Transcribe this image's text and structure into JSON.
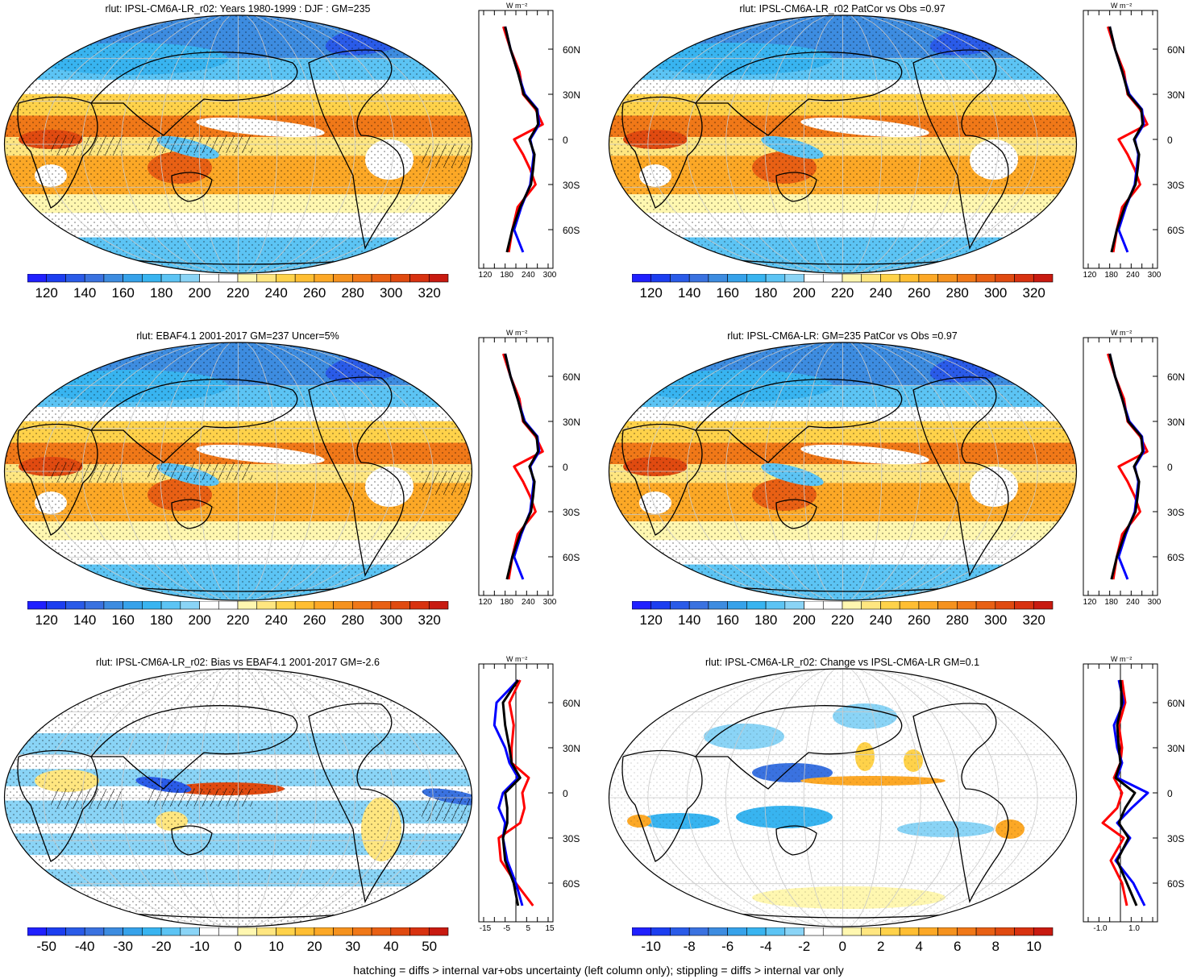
{
  "footer": "hatching = diffs > internal var+obs uncertainty (left column only); stippling = diffs > internal var only",
  "profile_unit": "W m⁻²",
  "lat_labels": [
    "60N",
    "30N",
    "0",
    "30S",
    "60S"
  ],
  "colors": {
    "blue_dark": "#1a1aff",
    "blue": "#35a8ef",
    "white": "#ffffff",
    "yellow": "#ffe680",
    "orange": "#f08a1a",
    "red": "#d81818",
    "line_red": "#ff0000",
    "line_blue": "#0000ff",
    "line_black": "#000000"
  },
  "panels": [
    {
      "id": "p1",
      "title": "rlut: IPSL-CM6A-LR_r02: Years 1980-1999 : DJF : GM=235",
      "field": "abs",
      "hatch": true,
      "colorbar_labels": [
        "120",
        "140",
        "160",
        "180",
        "200",
        "220",
        "240",
        "260",
        "280",
        "300",
        "320"
      ],
      "profile_ticks": [
        "120",
        "180",
        "240",
        "300"
      ]
    },
    {
      "id": "p2",
      "title": "rlut: IPSL-CM6A-LR_r02 PatCor vs Obs =0.97",
      "field": "abs",
      "hatch": false,
      "colorbar_labels": [
        "120",
        "140",
        "160",
        "180",
        "200",
        "220",
        "240",
        "260",
        "280",
        "300",
        "320"
      ],
      "profile_ticks": [
        "120",
        "180",
        "240",
        "300"
      ]
    },
    {
      "id": "p3",
      "title": "rlut: EBAF4.1 2001-2017 GM=237 Uncer=5%",
      "field": "abs",
      "hatch": true,
      "colorbar_labels": [
        "120",
        "140",
        "160",
        "180",
        "200",
        "220",
        "240",
        "260",
        "280",
        "300",
        "320"
      ],
      "profile_ticks": [
        "120",
        "180",
        "240",
        "300"
      ]
    },
    {
      "id": "p4",
      "title": "rlut: IPSL-CM6A-LR: GM=235 PatCor vs Obs =0.97",
      "field": "abs",
      "hatch": false,
      "colorbar_labels": [
        "120",
        "140",
        "160",
        "180",
        "200",
        "220",
        "240",
        "260",
        "280",
        "300",
        "320"
      ],
      "profile_ticks": [
        "120",
        "180",
        "240",
        "300"
      ]
    },
    {
      "id": "p5",
      "title": "rlut: IPSL-CM6A-LR_r02: Bias vs EBAF4.1 2001-2017 GM=-2.6",
      "field": "bias",
      "hatch": true,
      "colorbar_labels": [
        "-50",
        "-40",
        "-30",
        "-20",
        "-10",
        "0",
        "10",
        "20",
        "30",
        "40",
        "50"
      ],
      "profile_ticks": [
        "-15",
        "-5",
        "5",
        "15"
      ]
    },
    {
      "id": "p6",
      "title": "rlut: IPSL-CM6A-LR_r02: Change vs IPSL-CM6A-LR GM=0.1",
      "field": "change",
      "hatch": false,
      "colorbar_labels": [
        "-10",
        "-8",
        "-6",
        "-4",
        "-2",
        "0",
        "2",
        "4",
        "6",
        "8",
        "10"
      ],
      "profile_ticks": [
        "-1.0",
        "1.0"
      ]
    }
  ],
  "chart_data": {
    "type": "heatmap",
    "variable": "rlut",
    "zonal_profile_lat": [
      -75,
      -60,
      -45,
      -30,
      -20,
      -10,
      0,
      10,
      20,
      30,
      45,
      60,
      75
    ],
    "zonal_profiles": {
      "abs": {
        "red": [
          190,
          200,
          215,
          265,
          250,
          230,
          205,
          285,
          265,
          230,
          220,
          195,
          175
        ],
        "blue": [
          230,
          205,
          225,
          250,
          255,
          260,
          250,
          275,
          270,
          235,
          215,
          195,
          180
        ],
        "black": [
          185,
          200,
          222,
          252,
          258,
          262,
          248,
          272,
          268,
          232,
          215,
          195,
          180
        ]
      },
      "bias": {
        "red": [
          8,
          0,
          -7,
          -8,
          2,
          4,
          3,
          6,
          -2,
          -2,
          -1,
          -3,
          2
        ],
        "blue": [
          3,
          0,
          -4,
          -6,
          -5,
          -8,
          -6,
          1,
          -3,
          -5,
          -10,
          -9,
          1
        ],
        "black": [
          1,
          -1,
          -5,
          -6,
          -4,
          -4,
          -5,
          2,
          -2,
          -3,
          -5,
          -6,
          1
        ]
      },
      "change": {
        "red": [
          0.4,
          0.1,
          -0.6,
          0.2,
          -1.1,
          -0.2,
          0.1,
          -0.4,
          0.0,
          0.1,
          -0.1,
          0.3,
          0.1
        ],
        "blue": [
          1.5,
          0.8,
          -0.3,
          0.6,
          -0.2,
          0.7,
          1.7,
          -0.2,
          0.1,
          -0.2,
          -0.4,
          0.2,
          -0.1
        ],
        "black": [
          1.0,
          0.4,
          -0.2,
          0.5,
          -0.1,
          0.3,
          0.9,
          -0.3,
          0.0,
          -0.1,
          -0.2,
          0.1,
          0.0
        ]
      }
    }
  }
}
